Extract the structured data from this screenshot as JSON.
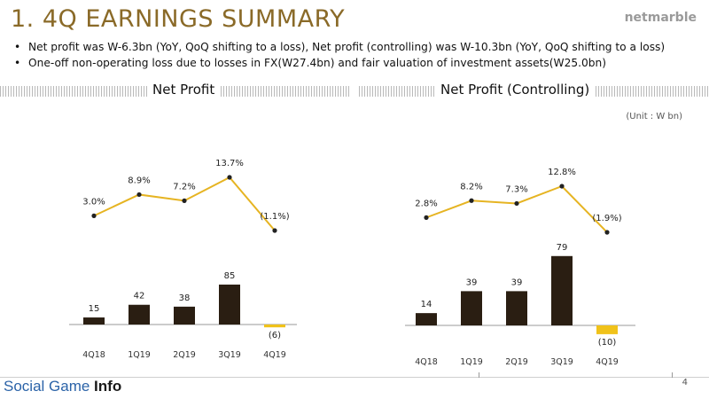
{
  "title": "1. 4Q EARNINGS SUMMARY",
  "logo": "netmarble",
  "bullets": [
    "Net profit was W-6.3bn (YoY, QoQ shifting to a loss), Net profit (controlling) was W-10.3bn (YoY, QoQ shifting to a loss)",
    "One-off non-operating loss due to losses in FX(W27.4bn) and fair valuation of investment assets(W25.0bn)"
  ],
  "unit_label": "(Unit : W bn)",
  "page_number": "4",
  "watermark": {
    "part1": "Social Game ",
    "part2": "Info"
  },
  "colors": {
    "bar": "#2a1e12",
    "negative_bar": "#f0c21a",
    "line": "#e6b422",
    "marker": "#222222",
    "title": "#8a6a28"
  },
  "chart_data": [
    {
      "type": "bar",
      "title": "Net Profit",
      "categories": [
        "4Q18",
        "1Q19",
        "2Q19",
        "3Q19",
        "4Q19"
      ],
      "values": [
        15,
        42,
        38,
        85,
        -6
      ],
      "value_labels": [
        "15",
        "42",
        "38",
        "85",
        "(6)"
      ],
      "line": {
        "name": "margin",
        "values": [
          3.0,
          8.9,
          7.2,
          13.7,
          -1.1
        ],
        "labels": [
          "3.0%",
          "8.9%",
          "7.2%",
          "13.7%",
          "(1.1%)"
        ]
      }
    },
    {
      "type": "bar",
      "title": "Net Profit (Controlling)",
      "categories": [
        "4Q18",
        "1Q19",
        "2Q19",
        "3Q19",
        "4Q19"
      ],
      "values": [
        14,
        39,
        39,
        79,
        -10
      ],
      "value_labels": [
        "14",
        "39",
        "39",
        "79",
        "(10)"
      ],
      "line": {
        "name": "margin",
        "values": [
          2.8,
          8.2,
          7.3,
          12.8,
          -1.9
        ],
        "labels": [
          "2.8%",
          "8.2%",
          "7.3%",
          "12.8%",
          "(1.9%)"
        ]
      }
    }
  ]
}
